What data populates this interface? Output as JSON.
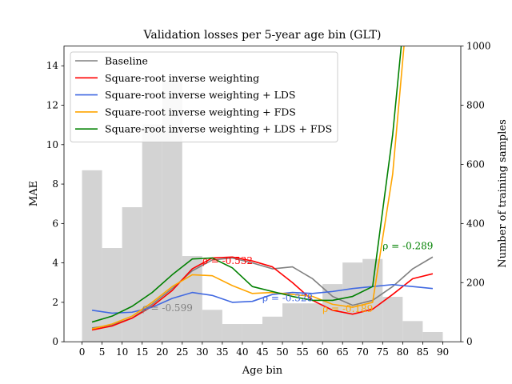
{
  "chart_data": {
    "type": "line",
    "title": "Validation losses per 5-year age bin (GLT)",
    "xlabel": "Age bin",
    "ylabel": "MAE",
    "y2label": "Number of training samples",
    "xlim": [
      -4.5,
      94.5
    ],
    "ylim": [
      0,
      15
    ],
    "y2lim": [
      0,
      1000
    ],
    "xticks": [
      0,
      5,
      10,
      15,
      20,
      25,
      30,
      35,
      40,
      45,
      50,
      55,
      60,
      65,
      70,
      75,
      80,
      85,
      90
    ],
    "yticks": [
      0,
      2,
      4,
      6,
      8,
      10,
      12,
      14
    ],
    "y2ticks": [
      0,
      200,
      400,
      600,
      800,
      1000
    ],
    "grid": false,
    "legend_position": "top-left",
    "x": [
      2.5,
      7.5,
      12.5,
      17.5,
      22.5,
      27.5,
      32.5,
      37.5,
      42.5,
      47.5,
      52.5,
      57.5,
      62.5,
      67.5,
      72.5,
      77.5,
      82.5,
      87.5
    ],
    "histogram": {
      "color": "#d3d3d3",
      "bin_width": 5,
      "counts": [
        580,
        317,
        455,
        735,
        880,
        290,
        108,
        60,
        60,
        85,
        130,
        130,
        195,
        268,
        280,
        152,
        70,
        33
      ]
    },
    "series": [
      {
        "name": "Baseline",
        "color": "#808080",
        "values": [
          0.7,
          0.85,
          1.2,
          1.9,
          2.7,
          3.6,
          4.15,
          4.25,
          4.0,
          3.7,
          3.8,
          3.2,
          2.3,
          1.85,
          2.1,
          2.8,
          3.7,
          4.3
        ]
      },
      {
        "name": "Square-root inverse weighting",
        "color": "#ff0000",
        "values": [
          0.6,
          0.8,
          1.2,
          1.8,
          2.6,
          3.7,
          4.25,
          4.3,
          4.1,
          3.8,
          3.0,
          2.1,
          1.6,
          1.4,
          1.65,
          2.4,
          3.2,
          3.45
        ]
      },
      {
        "name": "Square-root inverse weighting + LDS",
        "color": "#4169e1",
        "values": [
          1.6,
          1.45,
          1.5,
          1.75,
          2.2,
          2.5,
          2.35,
          2.0,
          2.05,
          2.4,
          2.5,
          2.45,
          2.55,
          2.7,
          2.8,
          2.9,
          2.8,
          2.7
        ]
      },
      {
        "name": "Square-root inverse weighting + FDS",
        "color": "#ffa500",
        "values": [
          0.65,
          0.9,
          1.3,
          2.0,
          2.8,
          3.4,
          3.35,
          2.85,
          2.45,
          2.5,
          2.4,
          2.3,
          1.9,
          1.75,
          2.0,
          8.5,
          20.0,
          31.0
        ]
      },
      {
        "name": "Square-root inverse weighting + LDS + FDS",
        "color": "#008000",
        "values": [
          1.0,
          1.3,
          1.8,
          2.5,
          3.4,
          4.2,
          4.25,
          3.75,
          2.8,
          2.55,
          2.3,
          2.1,
          2.1,
          2.3,
          2.8,
          10.5,
          21.0,
          32.0
        ]
      }
    ],
    "annotations": [
      {
        "text": "ρ = -0.599",
        "x": 15,
        "y": 1.55,
        "color": "#808080"
      },
      {
        "text": "ρ = -0.532",
        "x": 30,
        "y": 3.95,
        "color": "#ff0000"
      },
      {
        "text": "ρ = -0.328",
        "x": 45,
        "y": 2.05,
        "color": "#4169e1"
      },
      {
        "text": "ρ = -0.189",
        "x": 60,
        "y": 1.5,
        "color": "#ffa500"
      },
      {
        "text": "ρ = -0.289",
        "x": 75,
        "y": 4.7,
        "color": "#008000"
      }
    ]
  }
}
